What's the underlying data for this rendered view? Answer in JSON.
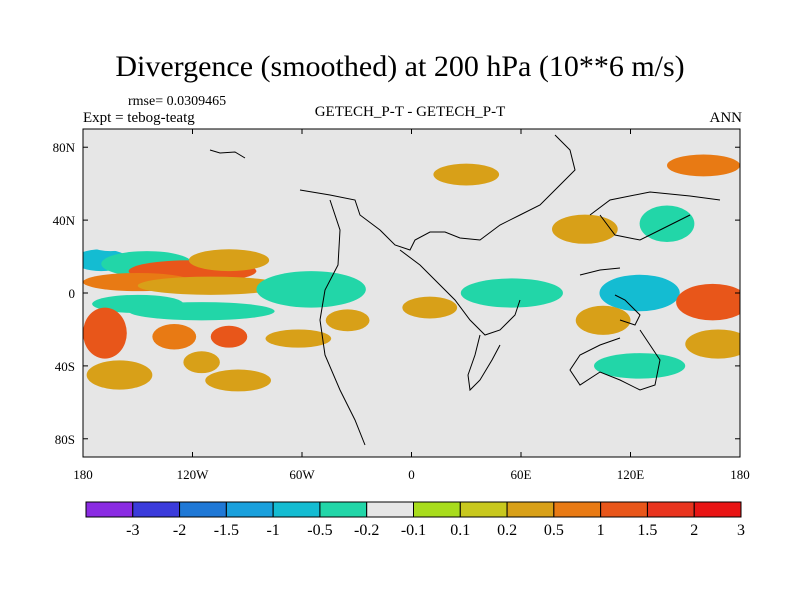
{
  "title": "Divergence (smoothed) at 200 hPa (10**6 m/s)",
  "rmse_text": "rmse= 0.0309465",
  "expt_text": "Expt = tebog-teatg",
  "center_label": "GETECH_P-T - GETECH_P-T",
  "season_label": "ANN",
  "colors": {
    "background": "#e6e6e6",
    "coast": "#000000",
    "bins": [
      "#8a2be2",
      "#3b3bdb",
      "#1f78d6",
      "#1aa0dc",
      "#14bcd2",
      "#22d6a8",
      "#e6e6e6",
      "#a8dc1c",
      "#c8c81e",
      "#d8a018",
      "#e87a14",
      "#e8561a",
      "#e8341e",
      "#e81414"
    ]
  },
  "chart_data": {
    "type": "heatmap",
    "title": "Divergence (smoothed) at 200 hPa (10**6 m/s)",
    "x_range": [
      -180,
      180
    ],
    "y_range": [
      -90,
      90
    ],
    "x_ticks": [
      {
        "value": -180,
        "label": "180"
      },
      {
        "value": -120,
        "label": "120W"
      },
      {
        "value": -60,
        "label": "60W"
      },
      {
        "value": 0,
        "label": "0"
      },
      {
        "value": 60,
        "label": "60E"
      },
      {
        "value": 120,
        "label": "120E"
      },
      {
        "value": 180,
        "label": "180"
      }
    ],
    "y_ticks": [
      {
        "value": 80,
        "label": "80N"
      },
      {
        "value": 40,
        "label": "40N"
      },
      {
        "value": 0,
        "label": "0"
      },
      {
        "value": -40,
        "label": "40S"
      },
      {
        "value": -80,
        "label": "80S"
      }
    ],
    "colorbar_levels": [
      "-3",
      "-2",
      "-1.5",
      "-1",
      "-0.5",
      "-0.2",
      "-0.1",
      "0.1",
      "0.2",
      "0.5",
      "1",
      "1.5",
      "2",
      "3"
    ],
    "blobs": [
      {
        "lon": -170,
        "lat": 18,
        "rx": 15,
        "ry": 6,
        "level": -1
      },
      {
        "lon": -145,
        "lat": 16,
        "rx": 25,
        "ry": 7,
        "level": -0.5
      },
      {
        "lon": -120,
        "lat": 12,
        "rx": 35,
        "ry": 6,
        "level": 1
      },
      {
        "lon": -150,
        "lat": 6,
        "rx": 30,
        "ry": 5,
        "level": 0.5
      },
      {
        "lon": -110,
        "lat": 4,
        "rx": 40,
        "ry": 5,
        "level": 0.2
      },
      {
        "lon": -100,
        "lat": 18,
        "rx": 22,
        "ry": 6,
        "level": 0.2
      },
      {
        "lon": -165,
        "lat": 30,
        "rx": 15,
        "ry": 7,
        "level": -0.2
      },
      {
        "lon": -130,
        "lat": 30,
        "rx": 20,
        "ry": 4,
        "level": -0.2
      },
      {
        "lon": -150,
        "lat": -6,
        "rx": 25,
        "ry": 5,
        "level": -0.5
      },
      {
        "lon": -115,
        "lat": -10,
        "rx": 40,
        "ry": 5,
        "level": -0.5
      },
      {
        "lon": -168,
        "lat": -22,
        "rx": 12,
        "ry": 14,
        "level": 1
      },
      {
        "lon": -130,
        "lat": -24,
        "rx": 12,
        "ry": 7,
        "level": 0.5
      },
      {
        "lon": -100,
        "lat": -24,
        "rx": 10,
        "ry": 6,
        "level": 1
      },
      {
        "lon": -160,
        "lat": -45,
        "rx": 18,
        "ry": 8,
        "level": 0.2
      },
      {
        "lon": -115,
        "lat": -38,
        "rx": 10,
        "ry": 6,
        "level": 0.2
      },
      {
        "lon": -95,
        "lat": -48,
        "rx": 18,
        "ry": 6,
        "level": 0.2
      },
      {
        "lon": -55,
        "lat": 2,
        "rx": 30,
        "ry": 10,
        "level": -0.5
      },
      {
        "lon": -35,
        "lat": -15,
        "rx": 12,
        "ry": 6,
        "level": 0.2
      },
      {
        "lon": -62,
        "lat": -25,
        "rx": 18,
        "ry": 5,
        "level": 0.2
      },
      {
        "lon": -18,
        "lat": 22,
        "rx": 20,
        "ry": 7,
        "level": -0.2
      },
      {
        "lon": 20,
        "lat": 30,
        "rx": 25,
        "ry": 8,
        "level": -0.2
      },
      {
        "lon": 10,
        "lat": -8,
        "rx": 15,
        "ry": 6,
        "level": 0.2
      },
      {
        "lon": 55,
        "lat": 0,
        "rx": 28,
        "ry": 8,
        "level": -0.5
      },
      {
        "lon": 50,
        "lat": 38,
        "rx": 20,
        "ry": 7,
        "level": -0.2
      },
      {
        "lon": 95,
        "lat": 35,
        "rx": 18,
        "ry": 8,
        "level": 0.2
      },
      {
        "lon": 125,
        "lat": 0,
        "rx": 22,
        "ry": 10,
        "level": -1
      },
      {
        "lon": 105,
        "lat": -15,
        "rx": 15,
        "ry": 8,
        "level": 0.2
      },
      {
        "lon": 165,
        "lat": -5,
        "rx": 20,
        "ry": 10,
        "level": 1
      },
      {
        "lon": 168,
        "lat": -28,
        "rx": 18,
        "ry": 8,
        "level": 0.2
      },
      {
        "lon": 125,
        "lat": -40,
        "rx": 25,
        "ry": 7,
        "level": -0.5
      },
      {
        "lon": 60,
        "lat": -55,
        "rx": 20,
        "ry": 6,
        "level": -0.2
      },
      {
        "lon": 140,
        "lat": 38,
        "rx": 15,
        "ry": 10,
        "level": -0.5
      },
      {
        "lon": 160,
        "lat": 70,
        "rx": 20,
        "ry": 6,
        "level": 0.5
      },
      {
        "lon": -150,
        "lat": 72,
        "rx": 18,
        "ry": 5,
        "level": -0.2
      },
      {
        "lon": 30,
        "lat": 65,
        "rx": 18,
        "ry": 6,
        "level": 0.2
      }
    ]
  }
}
